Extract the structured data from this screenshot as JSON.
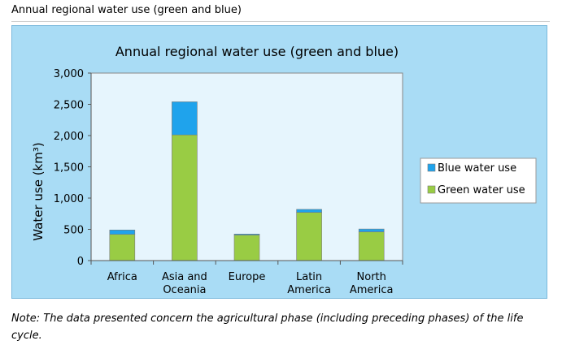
{
  "header": {
    "title": "Annual regional water use (green and blue)"
  },
  "footer": {
    "note": "Note: The data presented concern the agricultural phase (including preceding phases) of the life cycle."
  },
  "chart_data": {
    "type": "bar",
    "stacked": true,
    "title": "Annual regional water use (green and blue)",
    "ylabel": "Water use (km³)",
    "xlabel": "",
    "ylim": [
      0,
      3000
    ],
    "yticks": [
      "0",
      "500",
      "1,000",
      "1,500",
      "2,000",
      "2,500",
      "3,000"
    ],
    "ytick_values": [
      0,
      500,
      1000,
      1500,
      2000,
      2500,
      3000
    ],
    "categories": [
      [
        "Africa"
      ],
      [
        "Asia and",
        "Oceania"
      ],
      [
        "Europe"
      ],
      [
        "Latin",
        "America"
      ],
      [
        "North",
        "America"
      ]
    ],
    "series": [
      {
        "name": "Green water use",
        "color": "#99cc44",
        "values": [
          420,
          2010,
          410,
          770,
          460
        ]
      },
      {
        "name": "Blue water use",
        "color": "#1fa3ec",
        "values": [
          70,
          530,
          15,
          50,
          45
        ]
      }
    ],
    "legend_placement": "right",
    "grid": false,
    "plot_background": "#e6f5fd"
  }
}
